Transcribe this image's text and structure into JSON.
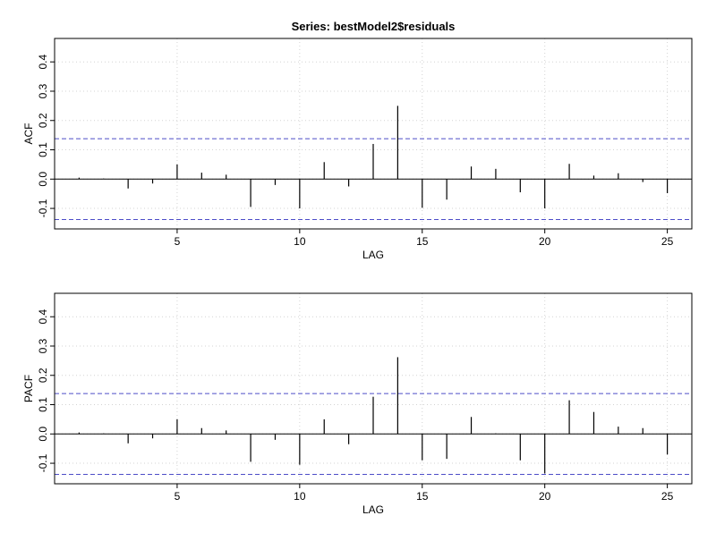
{
  "title": "Series:  bestModel2$residuals",
  "colors": {
    "axis": "#000000",
    "grid": "#d3d3d3",
    "bar": "#000000",
    "ci": "#4d4dc8",
    "background": "#ffffff"
  },
  "chart_data": [
    {
      "type": "bar",
      "panel": "acf",
      "xlabel": "LAG",
      "ylabel": "ACF",
      "xlim": [
        0,
        26
      ],
      "ylim": [
        -0.17,
        0.48
      ],
      "xticks": [
        5,
        10,
        15,
        20,
        25
      ],
      "yticks": [
        -0.1,
        0.0,
        0.1,
        0.2,
        0.3,
        0.4
      ],
      "grid": true,
      "ci": [
        0.138,
        -0.138
      ],
      "x": [
        1,
        2,
        3,
        4,
        5,
        6,
        7,
        8,
        9,
        10,
        11,
        12,
        13,
        14,
        15,
        16,
        17,
        18,
        19,
        20,
        21,
        22,
        23,
        24,
        25
      ],
      "values": [
        0.005,
        0.002,
        -0.032,
        -0.015,
        0.05,
        0.022,
        0.015,
        -0.095,
        -0.02,
        -0.1,
        0.058,
        -0.025,
        0.12,
        0.25,
        -0.098,
        -0.07,
        0.043,
        0.035,
        -0.045,
        -0.1,
        0.052,
        0.012,
        0.02,
        -0.01,
        -0.048
      ]
    },
    {
      "type": "bar",
      "panel": "pacf",
      "xlabel": "LAG",
      "ylabel": "PACF",
      "xlim": [
        0,
        26
      ],
      "ylim": [
        -0.17,
        0.48
      ],
      "xticks": [
        5,
        10,
        15,
        20,
        25
      ],
      "yticks": [
        -0.1,
        0.0,
        0.1,
        0.2,
        0.3,
        0.4
      ],
      "grid": true,
      "ci": [
        0.138,
        -0.138
      ],
      "x": [
        1,
        2,
        3,
        4,
        5,
        6,
        7,
        8,
        9,
        10,
        11,
        12,
        13,
        14,
        15,
        16,
        17,
        18,
        19,
        20,
        21,
        22,
        23,
        24,
        25
      ],
      "values": [
        0.005,
        0.002,
        -0.032,
        -0.015,
        0.05,
        0.02,
        0.012,
        -0.095,
        -0.02,
        -0.105,
        0.05,
        -0.035,
        0.127,
        0.262,
        -0.09,
        -0.085,
        0.058,
        0.002,
        -0.09,
        -0.135,
        0.115,
        0.075,
        0.025,
        0.02,
        -0.07
      ]
    }
  ]
}
